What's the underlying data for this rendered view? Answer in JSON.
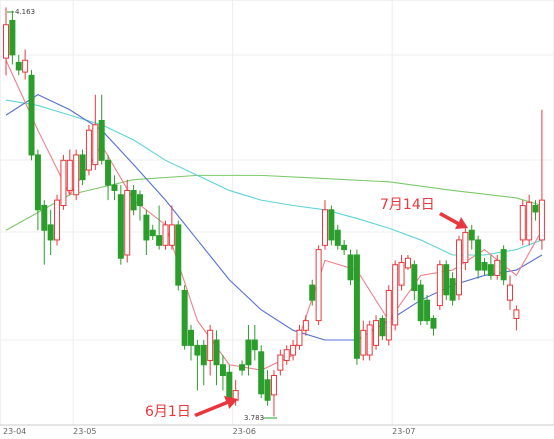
{
  "chart_data": {
    "type": "candlestick",
    "categories": [
      "23-04",
      null,
      null,
      null,
      null,
      null,
      null,
      null,
      null,
      null,
      null,
      "23-05",
      null,
      null,
      null,
      null,
      null,
      null,
      null,
      null,
      null,
      null,
      null,
      null,
      null,
      null,
      null,
      null,
      null,
      null,
      null,
      null,
      null,
      null,
      null,
      null,
      "23-06",
      null,
      null,
      null,
      null,
      null,
      null,
      null,
      null,
      null,
      null,
      null,
      null,
      null,
      null,
      null,
      null,
      null,
      null,
      null,
      null,
      null,
      null,
      null,
      null,
      "23-07",
      null,
      null,
      null,
      null,
      null,
      null,
      null,
      null,
      null,
      null,
      null,
      null,
      null,
      null,
      null,
      null,
      null,
      null,
      null,
      null,
      null,
      null,
      null
    ],
    "open": [
      4.116,
      4.151,
      4.112,
      4.103,
      4.1,
      4.026,
      3.979,
      3.961,
      3.947,
      3.979,
      3.993,
      3.989,
      4.026,
      4.012,
      4.017,
      4.058,
      4.021,
      3.998,
      3.989,
      3.933,
      3.993,
      3.989,
      3.97,
      3.956,
      3.951,
      3.942,
      3.942,
      3.961,
      3.9,
      3.863,
      3.849,
      3.849,
      3.835,
      3.854,
      3.831,
      3.824,
      3.798,
      3.831,
      3.854,
      3.854,
      3.843,
      3.817,
      3.803,
      3.826,
      3.835,
      3.84,
      3.849,
      3.863,
      3.905,
      3.872,
      3.942,
      3.975,
      3.956,
      3.942,
      3.933,
      3.933,
      3.84,
      3.84,
      3.849,
      3.874,
      3.854,
      3.868,
      3.905,
      3.921,
      3.924,
      3.905,
      3.891,
      3.874,
      3.886,
      3.924,
      3.911,
      3.896,
      3.926,
      3.956,
      3.947,
      3.926,
      3.924,
      3.914,
      3.938,
      3.891,
      3.874,
      3.947,
      3.947,
      3.979,
      3.947
    ],
    "high": [
      4.163,
      4.16,
      4.119,
      4.124,
      4.105,
      4.031,
      3.984,
      3.975,
      3.989,
      4.026,
      4.031,
      4.031,
      4.031,
      4.054,
      4.082,
      4.082,
      4.026,
      4.007,
      3.998,
      4.003,
      3.998,
      3.993,
      3.975,
      3.961,
      3.979,
      3.965,
      3.979,
      3.965,
      3.905,
      3.868,
      3.854,
      3.854,
      3.868,
      3.863,
      3.84,
      3.831,
      3.817,
      3.835,
      3.868,
      3.868,
      3.849,
      3.826,
      3.826,
      3.845,
      3.849,
      3.854,
      3.868,
      3.877,
      3.91,
      3.942,
      3.984,
      3.979,
      3.961,
      3.947,
      3.938,
      3.938,
      3.872,
      3.872,
      3.877,
      3.877,
      3.905,
      3.928,
      3.933,
      3.933,
      3.928,
      3.91,
      3.896,
      3.877,
      3.928,
      3.928,
      3.917,
      3.951,
      3.961,
      3.961,
      3.951,
      3.93,
      3.933,
      3.933,
      3.942,
      3.914,
      3.886,
      3.984,
      3.989,
      3.984,
      4.068
    ],
    "low": [
      4.1,
      4.11,
      4.1,
      4.096,
      4.021,
      3.956,
      3.924,
      3.933,
      3.942,
      3.975,
      3.989,
      3.984,
      3.998,
      4.007,
      4.012,
      4.017,
      3.984,
      3.984,
      3.924,
      3.926,
      3.97,
      3.965,
      3.933,
      3.947,
      3.938,
      3.938,
      3.938,
      3.9,
      3.845,
      3.835,
      3.807,
      3.812,
      3.821,
      3.812,
      3.807,
      3.793,
      3.793,
      3.821,
      3.821,
      3.835,
      3.8,
      3.793,
      3.783,
      3.821,
      3.831,
      3.835,
      3.845,
      3.858,
      3.886,
      3.868,
      3.938,
      3.942,
      3.938,
      3.933,
      3.905,
      3.831,
      3.835,
      3.835,
      3.845,
      3.854,
      3.849,
      3.863,
      3.9,
      3.919,
      3.891,
      3.868,
      3.868,
      3.858,
      3.882,
      3.891,
      3.886,
      3.891,
      3.919,
      3.938,
      3.911,
      3.914,
      3.91,
      3.91,
      3.905,
      3.882,
      3.863,
      3.942,
      3.942,
      3.965,
      3.938
    ],
    "close": [
      4.147,
      4.119,
      4.105,
      4.114,
      4.026,
      3.975,
      3.956,
      3.947,
      3.984,
      4.021,
      4.021,
      4.026,
      4.003,
      4.049,
      4.054,
      4.021,
      3.998,
      3.993,
      3.93,
      3.993,
      3.975,
      3.979,
      3.947,
      3.951,
      3.942,
      3.961,
      3.961,
      3.905,
      3.849,
      3.849,
      3.84,
      3.831,
      3.863,
      3.831,
      3.821,
      3.8,
      3.807,
      3.826,
      3.831,
      3.845,
      3.804,
      3.798,
      3.821,
      3.84,
      3.845,
      3.849,
      3.863,
      3.872,
      3.891,
      3.938,
      3.975,
      3.947,
      3.942,
      3.938,
      3.91,
      3.837,
      3.863,
      3.868,
      3.872,
      3.858,
      3.9,
      3.924,
      3.926,
      3.93,
      3.9,
      3.872,
      3.872,
      3.865,
      3.924,
      3.896,
      3.891,
      3.947,
      3.954,
      3.947,
      3.919,
      3.919,
      3.914,
      3.928,
      3.91,
      3.905,
      3.882,
      3.979,
      3.982,
      3.973,
      3.984
    ],
    "up_color": "#e8383d",
    "down_color": "#2a9d2a",
    "lines": [
      {
        "color": "#7cc96b",
        "x": [
          0,
          10,
          20,
          30,
          40,
          50,
          60,
          70,
          80,
          84
        ],
        "values": [
          3.956,
          3.989,
          4.003,
          4.007,
          4.007,
          4.004,
          4.001,
          3.993,
          3.986,
          3.979
        ]
      },
      {
        "color": "#5fd3d8",
        "x": [
          0,
          5,
          10,
          15,
          20,
          25,
          30,
          35,
          40,
          45,
          50,
          55,
          60,
          65,
          70,
          75,
          80,
          84
        ],
        "values": [
          4.077,
          4.072,
          4.063,
          4.054,
          4.04,
          4.021,
          4.007,
          3.993,
          3.984,
          3.979,
          3.975,
          3.967,
          3.958,
          3.947,
          3.933,
          3.933,
          3.938,
          3.947
        ]
      },
      {
        "color": "#5470d6",
        "x": [
          0,
          5,
          10,
          15,
          20,
          25,
          30,
          35,
          40,
          45,
          50,
          55,
          60,
          65,
          70,
          75,
          80,
          84
        ],
        "values": [
          4.063,
          4.082,
          4.068,
          4.049,
          4.017,
          3.984,
          3.947,
          3.91,
          3.882,
          3.863,
          3.854,
          3.854,
          3.872,
          3.891,
          3.905,
          3.914,
          3.919,
          3.933
        ]
      },
      {
        "color": "#ef7f8a",
        "x": [
          0,
          5,
          10,
          15,
          20,
          25,
          30,
          35,
          40,
          45,
          50,
          55,
          60,
          65,
          70,
          75,
          80,
          84
        ],
        "values": [
          4.114,
          4.049,
          3.989,
          4.035,
          3.984,
          3.961,
          3.872,
          3.831,
          3.826,
          3.84,
          3.928,
          3.919,
          3.872,
          3.914,
          3.919,
          3.938,
          3.914,
          3.956
        ]
      }
    ],
    "ylim": [
      3.775,
      4.17
    ],
    "max_label": 4.163,
    "min_label": 3.783,
    "annotations": [
      "6月1日",
      "7月14日"
    ]
  }
}
